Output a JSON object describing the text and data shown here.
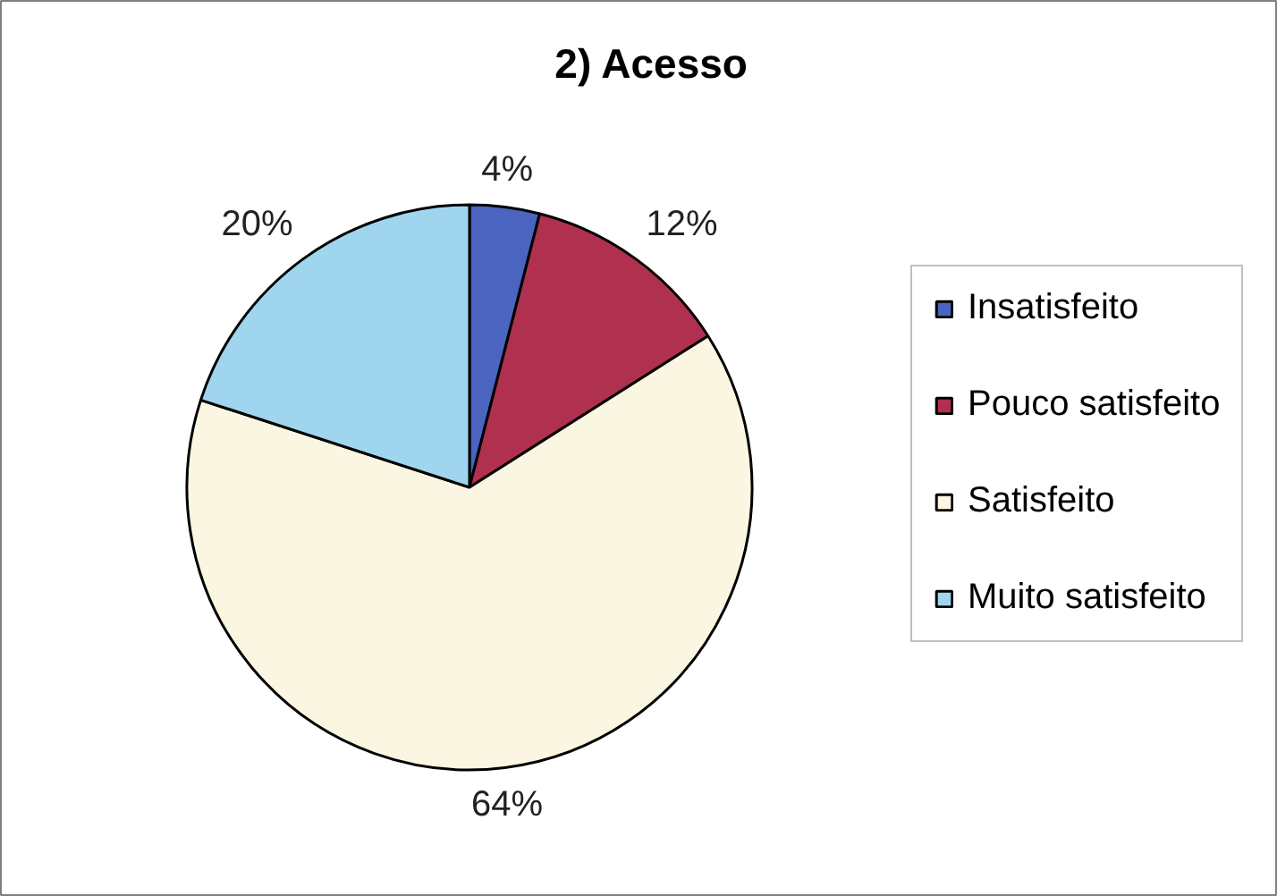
{
  "chart_data": {
    "type": "pie",
    "title": "2) Acesso",
    "categories": [
      "Insatisfeito",
      "Pouco satisfeito",
      "Satisfeito",
      "Muito satisfeito"
    ],
    "values": [
      4,
      12,
      64,
      20
    ],
    "colors": [
      "#4a64bf",
      "#b0304f",
      "#fbf6e1",
      "#a0d5ef"
    ],
    "value_labels": [
      "4%",
      "12%",
      "64%",
      "20%"
    ],
    "legend": "right"
  }
}
